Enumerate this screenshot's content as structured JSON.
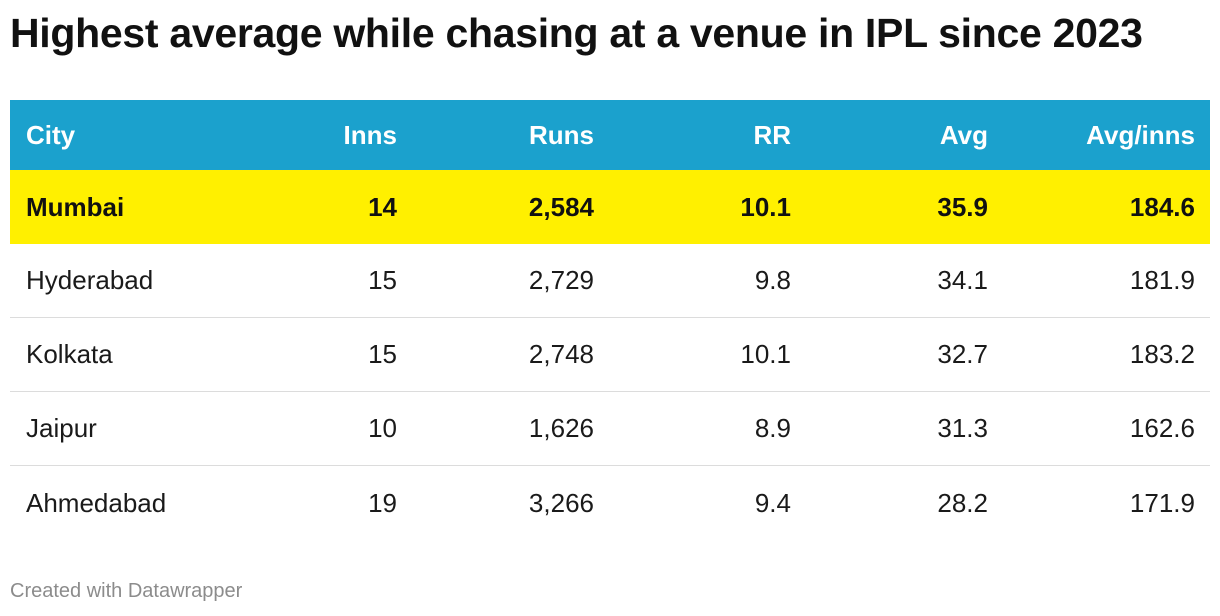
{
  "title": "Highest average while chasing at a venue in IPL since 2023",
  "footer": "Created with Datawrapper",
  "colors": {
    "header_bg": "#1ba1cd",
    "highlight_bg": "#fff000"
  },
  "chart_data": {
    "type": "table",
    "title": "Highest average while chasing at a venue in IPL since 2023",
    "columns": [
      "City",
      "Inns",
      "Runs",
      "RR",
      "Avg",
      "Avg/inns"
    ],
    "highlighted_row": "Mumbai",
    "rows": [
      [
        "Mumbai",
        "14",
        "2,584",
        "10.1",
        "35.9",
        "184.6"
      ],
      [
        "Hyderabad",
        "15",
        "2,729",
        "9.8",
        "34.1",
        "181.9"
      ],
      [
        "Kolkata",
        "15",
        "2,748",
        "10.1",
        "32.7",
        "183.2"
      ],
      [
        "Jaipur",
        "10",
        "1,626",
        "8.9",
        "31.3",
        "162.6"
      ],
      [
        "Ahmedabad",
        "19",
        "3,266",
        "9.4",
        "28.2",
        "171.9"
      ]
    ]
  }
}
